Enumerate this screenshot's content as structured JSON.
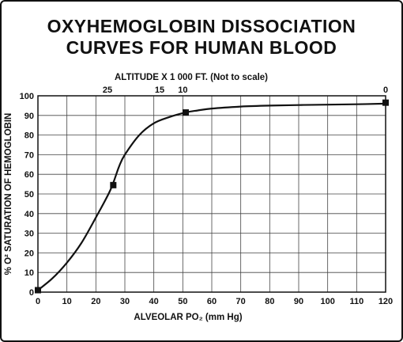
{
  "title_line1": "OXYHEMOGLOBIN DISSOCIATION",
  "title_line2": "CURVES FOR HUMAN BLOOD",
  "chart_data": {
    "type": "line",
    "title": "OXYHEMOGLOBIN DISSOCIATION CURVES FOR HUMAN BLOOD",
    "xlabel": "ALVEOLAR PO₂ (mm Hg)",
    "ylabel": "% O² SATURATION OF HEMOGLOBIN",
    "top_axis_label": "ALTITUDE X 1 000 FT. (Not to scale)",
    "xlim": [
      0,
      120
    ],
    "ylim": [
      0,
      100
    ],
    "x_ticks": [
      0,
      10,
      20,
      30,
      40,
      50,
      60,
      70,
      80,
      90,
      100,
      110,
      120
    ],
    "y_ticks": [
      0,
      10,
      20,
      30,
      40,
      50,
      60,
      70,
      80,
      90,
      100
    ],
    "top_ticks": [
      {
        "label": "25",
        "x": 24
      },
      {
        "label": "15",
        "x": 42
      },
      {
        "label": "10",
        "x": 50
      },
      {
        "label": "0",
        "x": 120
      }
    ],
    "grid": true,
    "line_color": "#111111",
    "series": [
      {
        "x": [
          0,
          5,
          10,
          15,
          20,
          25,
          28,
          30,
          35,
          40,
          45,
          51,
          55,
          60,
          70,
          80,
          90,
          100,
          110,
          120
        ],
        "values": [
          1,
          7,
          15,
          25,
          38,
          52,
          64,
          70,
          80,
          86,
          89,
          91.5,
          92.5,
          93.5,
          94.5,
          95,
          95.3,
          95.5,
          95.7,
          96
        ]
      }
    ],
    "markers": [
      {
        "x": 0,
        "y": 1
      },
      {
        "x": 26,
        "y": 54.5
      },
      {
        "x": 51,
        "y": 91.5
      },
      {
        "x": 120,
        "y": 96.5
      }
    ]
  }
}
